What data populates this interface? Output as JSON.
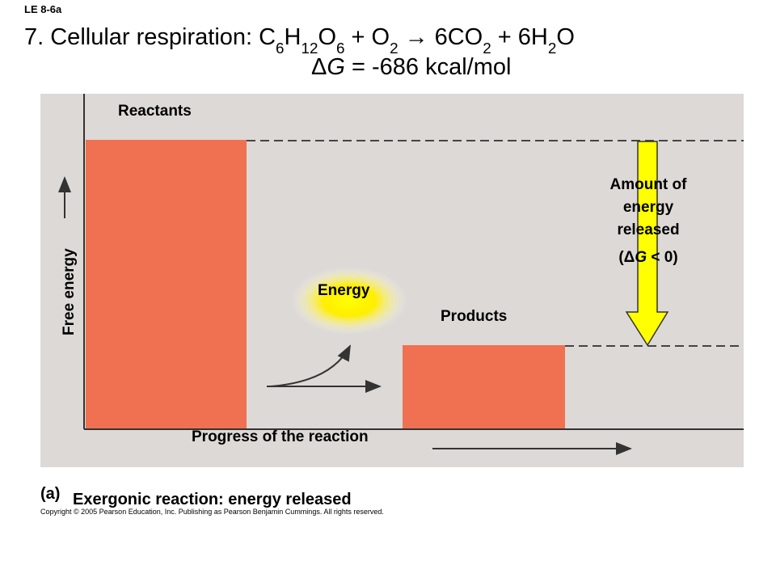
{
  "header": {
    "label": "LE 8-6a",
    "title_prefix": "7. Cellular respiration:",
    "reactants": [
      "C",
      "6",
      "H",
      "12",
      "O",
      "6",
      " + O",
      "2"
    ],
    "arrow": "→",
    "products": [
      "6CO",
      "2",
      " + 6H",
      "2",
      "O"
    ],
    "delta_g": [
      "Δ",
      "G",
      " = -686 kcal/mol"
    ]
  },
  "diagram": {
    "y_axis_label": "Free energy",
    "reactants_label": "Reactants",
    "products_label": "Products",
    "energy_label": "Energy",
    "released_lines": [
      "Amount of",
      "energy",
      "released"
    ],
    "released_delta": [
      "(Δ",
      "G",
      " < 0)"
    ],
    "x_axis_label": "Progress of the reaction"
  },
  "caption": {
    "panel": "(a)",
    "text": "Exergonic reaction: energy released",
    "copyright": "Copyright © 2005 Pearson Education, Inc. Publishing as Pearson Benjamin Cummings. All rights reserved."
  }
}
